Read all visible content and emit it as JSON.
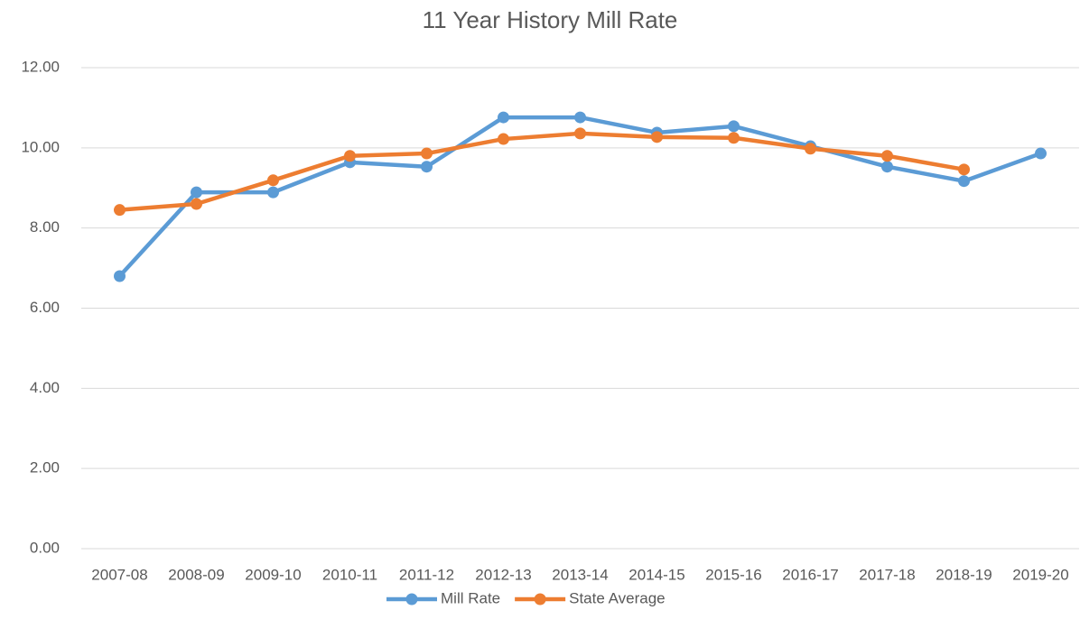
{
  "chart_data": {
    "type": "line",
    "title": "11 Year History Mill Rate",
    "categories": [
      "2007-08",
      "2008-09",
      "2009-10",
      "2010-11",
      "2011-12",
      "2012-13",
      "2013-14",
      "2014-15",
      "2015-16",
      "2016-17",
      "2017-18",
      "2018-19",
      "2019-20"
    ],
    "series": [
      {
        "name": "Mill Rate",
        "color": "#5b9bd5",
        "values": [
          6.8,
          8.89,
          8.89,
          9.64,
          9.53,
          10.76,
          10.76,
          10.38,
          10.54,
          10.04,
          9.53,
          9.17,
          9.86
        ]
      },
      {
        "name": "State Average",
        "color": "#ed7d31",
        "values": [
          8.45,
          8.6,
          9.19,
          9.8,
          9.86,
          10.22,
          10.36,
          10.27,
          10.25,
          9.98,
          9.8,
          9.46,
          null
        ]
      }
    ],
    "ylim": [
      0,
      12
    ],
    "yticks": [
      {
        "value": 0,
        "label": "0.00"
      },
      {
        "value": 2,
        "label": "2.00"
      },
      {
        "value": 4,
        "label": "4.00"
      },
      {
        "value": 6,
        "label": "6.00"
      },
      {
        "value": 8,
        "label": "8.00"
      },
      {
        "value": 10,
        "label": "10.00"
      },
      {
        "value": 12,
        "label": "12.00"
      }
    ],
    "grid": true,
    "legend": "bottom"
  }
}
